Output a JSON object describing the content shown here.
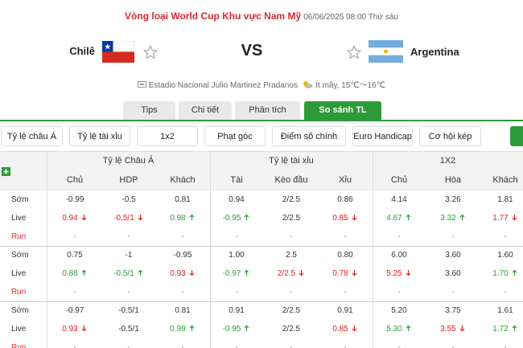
{
  "header": {
    "competition": "Vòng loại World Cup Khu vực Nam Mỹ",
    "datetime": "06/06/2025 08:00 Thứ sáu"
  },
  "match": {
    "home": "Chilê",
    "vs": "VS",
    "away": "Argentina",
    "venue": "Estadio Nacional Julio Martinez Pradanos",
    "weather": "Ít mây, 15℃～16℃"
  },
  "tabs": [
    "Tips",
    "Chi tiết",
    "Phân tích",
    "So sánh TL"
  ],
  "active_tab": 3,
  "filters": [
    "Tỷ lệ châu Á",
    "Tỷ lệ tài xỉu",
    "1x2",
    "Phạt góc",
    "Điểm số chính xác",
    "Euro Handicap",
    "Cơ hội kép"
  ],
  "table": {
    "groups": [
      "Tỷ lệ Châu Á",
      "Tỷ lệ tài xỉu",
      "1X2"
    ],
    "columns": [
      "Chủ",
      "HDP",
      "Khách",
      "Tài",
      "Kèo đầu",
      "Xỉu",
      "Chủ",
      "Hòa",
      "Khách"
    ],
    "blocks": [
      {
        "rows": [
          {
            "label": "Sớm",
            "cells": [
              {
                "text": "-0.99"
              },
              {
                "text": "-0.5"
              },
              {
                "text": "0.81"
              },
              {
                "text": "0.94"
              },
              {
                "text": "2/2.5"
              },
              {
                "text": "0.86"
              },
              {
                "text": "4.14"
              },
              {
                "text": "3.26"
              },
              {
                "text": "1.81"
              }
            ]
          },
          {
            "label": "Live",
            "cells": [
              {
                "text": "0.94",
                "trend": "down"
              },
              {
                "text": "-0.5/1",
                "trend": "down"
              },
              {
                "text": "0.98",
                "trend": "up"
              },
              {
                "text": "-0.95",
                "trend": "up"
              },
              {
                "text": "2/2.5"
              },
              {
                "text": "0.85",
                "trend": "down"
              },
              {
                "text": "4.67",
                "trend": "up"
              },
              {
                "text": "3.32",
                "trend": "up"
              },
              {
                "text": "1.77",
                "trend": "down"
              }
            ]
          },
          {
            "label": "Run",
            "cells": [
              {
                "text": "-"
              },
              {
                "text": "-"
              },
              {
                "text": "-"
              },
              {
                "text": "-"
              },
              {
                "text": "-"
              },
              {
                "text": "-"
              },
              {
                "text": "-"
              },
              {
                "text": "-"
              },
              {
                "text": "-"
              }
            ]
          }
        ]
      },
      {
        "rows": [
          {
            "label": "Sớm",
            "cells": [
              {
                "text": "0.75"
              },
              {
                "text": "-1"
              },
              {
                "text": "-0.95"
              },
              {
                "text": "1.00"
              },
              {
                "text": "2.5"
              },
              {
                "text": "0.80"
              },
              {
                "text": "6.00"
              },
              {
                "text": "3.60"
              },
              {
                "text": "1.60"
              }
            ]
          },
          {
            "label": "Live",
            "cells": [
              {
                "text": "0.88",
                "trend": "up"
              },
              {
                "text": "-0.5/1",
                "trend": "up"
              },
              {
                "text": "0.93",
                "trend": "down"
              },
              {
                "text": "-0.97",
                "trend": "up"
              },
              {
                "text": "2/2.5",
                "trend": "down"
              },
              {
                "text": "0.78",
                "trend": "down"
              },
              {
                "text": "5.25",
                "trend": "down"
              },
              {
                "text": "3.60"
              },
              {
                "text": "1.70",
                "trend": "up"
              }
            ]
          },
          {
            "label": "Run",
            "cells": [
              {
                "text": "-"
              },
              {
                "text": "-"
              },
              {
                "text": "-"
              },
              {
                "text": "-"
              },
              {
                "text": "-"
              },
              {
                "text": "-"
              },
              {
                "text": "-"
              },
              {
                "text": "-"
              },
              {
                "text": "-"
              }
            ]
          }
        ]
      },
      {
        "rows": [
          {
            "label": "Sớm",
            "cells": [
              {
                "text": "-0.97"
              },
              {
                "text": "-0.5/1"
              },
              {
                "text": "0.81"
              },
              {
                "text": "0.91"
              },
              {
                "text": "2/2.5"
              },
              {
                "text": "0.91"
              },
              {
                "text": "5.20"
              },
              {
                "text": "3.75"
              },
              {
                "text": "1.61"
              }
            ]
          },
          {
            "label": "Live",
            "cells": [
              {
                "text": "0.93",
                "trend": "down"
              },
              {
                "text": "-0.5/1"
              },
              {
                "text": "0.99",
                "trend": "up"
              },
              {
                "text": "-0.95",
                "trend": "up"
              },
              {
                "text": "2/2.5"
              },
              {
                "text": "0.85",
                "trend": "down"
              },
              {
                "text": "5.30",
                "trend": "up"
              },
              {
                "text": "3.55",
                "trend": "down"
              },
              {
                "text": "1.72",
                "trend": "up"
              }
            ]
          },
          {
            "label": "Run",
            "cells": [
              {
                "text": "-"
              },
              {
                "text": "-"
              },
              {
                "text": "-"
              },
              {
                "text": "-"
              },
              {
                "text": "-"
              },
              {
                "text": "-"
              },
              {
                "text": "-"
              },
              {
                "text": "-"
              },
              {
                "text": "-"
              }
            ]
          }
        ]
      }
    ]
  }
}
